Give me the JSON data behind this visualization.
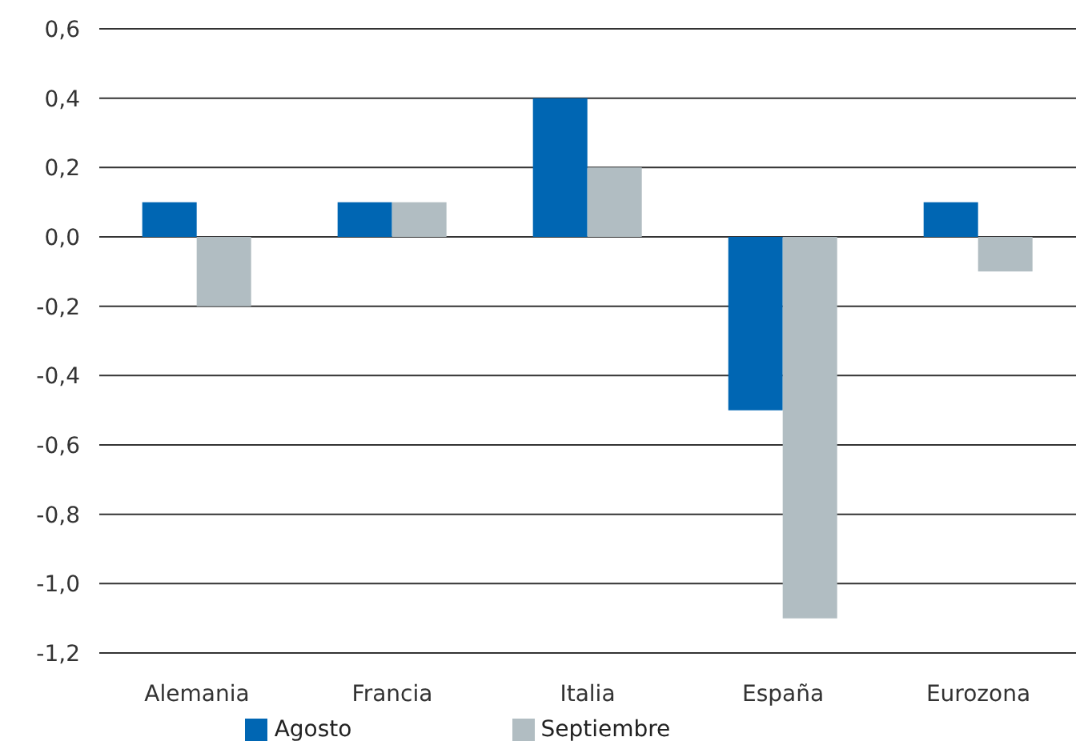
{
  "chart_data": {
    "type": "bar",
    "categories": [
      "Alemania",
      "Francia",
      "Italia",
      "España",
      "Eurozona"
    ],
    "series": [
      {
        "name": "Agosto",
        "color": "#0066b3",
        "values": [
          0.1,
          0.1,
          0.4,
          -0.5,
          0.1
        ]
      },
      {
        "name": "Septiembre",
        "color": "#b1bdc2",
        "values": [
          -0.2,
          0.1,
          0.2,
          -1.1,
          -0.1
        ]
      }
    ],
    "ylim": [
      -1.2,
      0.6
    ],
    "yticks": [
      {
        "value": -1.2,
        "label": "-1,2"
      },
      {
        "value": -1.0,
        "label": "-1,0"
      },
      {
        "value": -0.8,
        "label": "-0,8"
      },
      {
        "value": -0.6,
        "label": "-0,6"
      },
      {
        "value": -0.4,
        "label": "-0,4"
      },
      {
        "value": -0.2,
        "label": "-0,2"
      },
      {
        "value": 0,
        "label": "0,0"
      },
      {
        "value": 0.2,
        "label": "0,2"
      },
      {
        "value": 0.4,
        "label": "0,4"
      },
      {
        "value": 0.6,
        "label": "0,6"
      }
    ],
    "grid": "y",
    "legend": "bottom"
  }
}
